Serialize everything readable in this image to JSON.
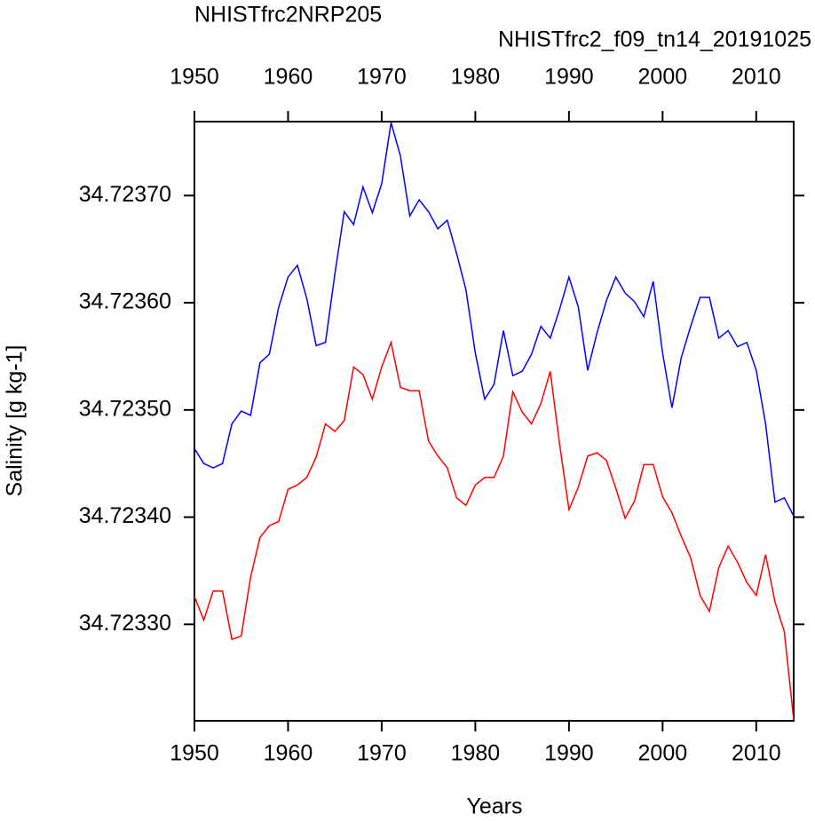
{
  "chart_data": {
    "type": "line",
    "xlabel": "Years",
    "ylabel": "Salinity [g kg-1]",
    "x": [
      1950,
      1951,
      1952,
      1953,
      1954,
      1955,
      1956,
      1957,
      1958,
      1959,
      1960,
      1961,
      1962,
      1963,
      1964,
      1965,
      1966,
      1967,
      1968,
      1969,
      1970,
      1971,
      1972,
      1973,
      1974,
      1975,
      1976,
      1977,
      1978,
      1979,
      1980,
      1981,
      1982,
      1983,
      1984,
      1985,
      1986,
      1987,
      1988,
      1989,
      1990,
      1991,
      1992,
      1993,
      1994,
      1995,
      1996,
      1997,
      1998,
      1999,
      2000,
      2001,
      2002,
      2003,
      2004,
      2005,
      2006,
      2007,
      2008,
      2009,
      2010,
      2011,
      2012,
      2013,
      2014
    ],
    "series": [
      {
        "name": "NHISTfrc2NRP205",
        "color": "#0000ff",
        "values": [
          34.723464,
          34.72345,
          34.723446,
          34.72345,
          34.723487,
          34.723499,
          34.723495,
          34.723544,
          34.723552,
          34.723596,
          34.723624,
          34.723635,
          34.723604,
          34.72356,
          34.723563,
          34.723627,
          34.723685,
          34.723673,
          34.723708,
          34.723684,
          34.723711,
          34.723768,
          34.723737,
          34.723681,
          34.723696,
          34.723685,
          34.723669,
          34.723677,
          34.723646,
          34.723612,
          34.723553,
          34.72351,
          34.723524,
          34.723574,
          34.723532,
          34.723536,
          34.723552,
          34.723578,
          34.723567,
          34.723594,
          34.723624,
          34.723596,
          34.723537,
          34.723572,
          34.723602,
          34.723624,
          34.723609,
          34.723601,
          34.723587,
          34.72362,
          34.723553,
          34.723502,
          34.723549,
          34.723578,
          34.723605,
          34.723605,
          34.723567,
          34.723574,
          34.723559,
          34.723563,
          34.723537,
          34.723487,
          34.723414,
          34.723418,
          34.723401
        ]
      },
      {
        "name": "NHISTfrc2_f09_tn14_20191025",
        "color": "#ff0000",
        "values": [
          34.723326,
          34.723304,
          34.723331,
          34.723331,
          34.723286,
          34.723289,
          34.723344,
          34.723381,
          34.723392,
          34.723396,
          34.723426,
          34.72343,
          34.723437,
          34.723456,
          34.723487,
          34.72348,
          34.72349,
          34.72354,
          34.723533,
          34.72351,
          34.72354,
          34.723563,
          34.723521,
          34.723518,
          34.723518,
          34.723471,
          34.723457,
          34.723446,
          34.723418,
          34.723411,
          34.72343,
          34.723437,
          34.723437,
          34.723457,
          34.723517,
          34.723498,
          34.723487,
          34.723506,
          34.723536,
          34.723468,
          34.723407,
          34.723428,
          34.723457,
          34.72346,
          34.723453,
          34.723427,
          34.723399,
          34.723415,
          34.723449,
          34.723449,
          34.723419,
          34.723404,
          34.723382,
          34.723362,
          34.723327,
          34.723312,
          34.723353,
          34.723373,
          34.723358,
          34.723339,
          34.723327,
          34.723365,
          34.723321,
          34.723293,
          34.723211
        ]
      }
    ],
    "xlim": [
      1950,
      2014
    ],
    "xticks": [
      1950,
      1960,
      1970,
      1980,
      1990,
      2000,
      2010
    ],
    "ylim": [
      34.72321,
      34.723769
    ],
    "yticks": [
      {
        "value": 34.7233,
        "label": "34.72330"
      },
      {
        "value": 34.7234,
        "label": "34.72340"
      },
      {
        "value": 34.7235,
        "label": "34.72350"
      },
      {
        "value": 34.7236,
        "label": "34.72360"
      },
      {
        "value": 34.7237,
        "label": "34.72370"
      }
    ]
  }
}
